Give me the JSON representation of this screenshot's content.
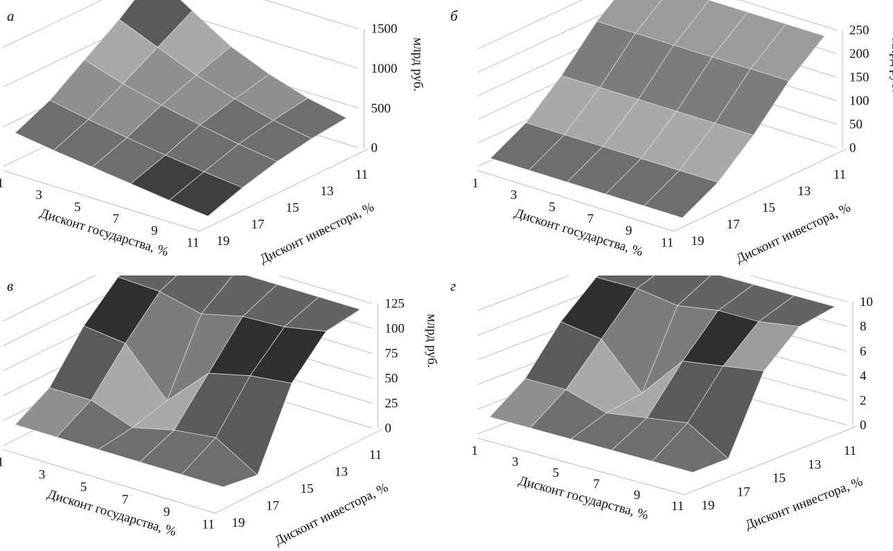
{
  "chart_data": [
    {
      "type": "surface",
      "panel_label": "а",
      "xlabel": "Дисконт государства, %",
      "ylabel": "Дисконт инвестора, %",
      "zlabel": "млрд руб.",
      "x_ticks": [
        "1",
        "3",
        "5",
        "7",
        "9",
        "11"
      ],
      "y_ticks": [
        "11",
        "13",
        "15",
        "17",
        "19"
      ],
      "z_ticks": [
        "0",
        "500",
        "1000",
        "1500"
      ],
      "zlim": [
        0,
        1500
      ],
      "z_step": 250,
      "z": [
        [
          1500,
          1200,
          900,
          700,
          550,
          450
        ],
        [
          1150,
          950,
          750,
          600,
          480,
          400
        ],
        [
          850,
          700,
          580,
          480,
          390,
          320
        ],
        [
          550,
          460,
          380,
          310,
          250,
          200
        ],
        [
          350,
          280,
          220,
          160,
          100,
          50
        ]
      ]
    },
    {
      "type": "surface",
      "panel_label": "б",
      "xlabel": "Дисконт государства, %",
      "ylabel": "Дисконт инвестора, %",
      "zlabel": "млрд руб.",
      "x_ticks": [
        "1",
        "3",
        "5",
        "7",
        "9",
        "11"
      ],
      "y_ticks": [
        "11",
        "13",
        "15",
        "17",
        "19"
      ],
      "z_ticks": [
        "0",
        "50",
        "100",
        "150",
        "200",
        "250"
      ],
      "zlim": [
        0,
        250
      ],
      "z_step": 25,
      "z": [
        [
          250,
          250,
          250,
          250,
          250,
          250
        ],
        [
          190,
          190,
          190,
          190,
          190,
          190
        ],
        [
          110,
          110,
          110,
          110,
          110,
          110
        ],
        [
          45,
          45,
          45,
          45,
          45,
          45
        ],
        [
          5,
          5,
          5,
          5,
          5,
          5
        ]
      ]
    },
    {
      "type": "surface",
      "panel_label": "в",
      "xlabel": "Дисконт государства, %",
      "ylabel": "Дисконт инвестора, %",
      "zlabel": "млрд руб.",
      "x_ticks": [
        "1",
        "3",
        "5",
        "7",
        "9",
        "11"
      ],
      "y_ticks": [
        "11",
        "13",
        "15",
        "17",
        "19"
      ],
      "z_ticks": [
        "0",
        "25",
        "50",
        "75",
        "100",
        "125"
      ],
      "zlim": [
        0,
        125
      ],
      "z_step": 12.5,
      "z": [
        [
          125,
          125,
          125,
          125,
          125,
          125
        ],
        [
          112,
          110,
          100,
          110,
          112,
          120
        ],
        [
          80,
          75,
          30,
          70,
          80,
          85
        ],
        [
          35,
          35,
          20,
          30,
          35,
          10
        ],
        [
          15,
          15,
          15,
          15,
          15,
          15
        ]
      ]
    },
    {
      "type": "surface",
      "panel_label": "г",
      "xlabel": "Дисконт государства, %",
      "ylabel": "Дисконт инвестора, %",
      "zlabel": "",
      "x_ticks": [
        "1",
        "3",
        "5",
        "7",
        "9",
        "11"
      ],
      "y_ticks": [
        "11",
        "13",
        "15",
        "17",
        "19"
      ],
      "z_ticks": [
        "0",
        "2",
        "4",
        "6",
        "8",
        "10"
      ],
      "zlim": [
        0,
        10
      ],
      "z_step": 1,
      "z": [
        [
          10,
          10,
          10,
          10,
          10,
          10
        ],
        [
          9,
          9,
          8.5,
          9,
          9,
          9.5
        ],
        [
          6.5,
          6,
          2.5,
          6,
          6.5,
          7
        ],
        [
          3,
          3,
          2,
          2.5,
          3,
          1
        ],
        [
          1,
          1,
          1,
          1,
          1,
          1
        ]
      ]
    }
  ]
}
